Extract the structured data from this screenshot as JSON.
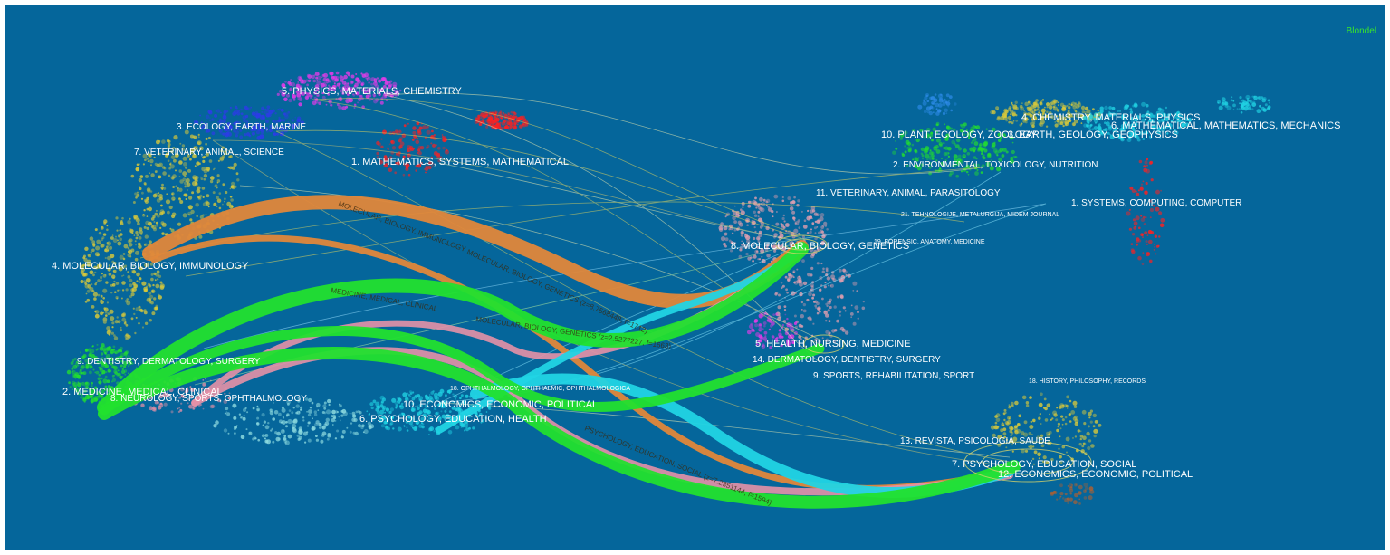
{
  "brand": "Blondel",
  "colors": {
    "background": "#05669b",
    "orange": "#e0873a",
    "green": "#22e02e",
    "pink": "#e691a7",
    "cyan": "#21d4e4",
    "yellow": "#d8c93a",
    "label": "#ffffff"
  },
  "left_clusters": [
    {
      "name": "5. PHYSICS, MATERIALS, CHEMISTRY"
    },
    {
      "name": "3. ECOLOGY, EARTH, MARINE"
    },
    {
      "name": "7. VETERINARY, ANIMAL, SCIENCE"
    },
    {
      "name": "1. MATHEMATICS, SYSTEMS, MATHEMATICAL"
    },
    {
      "name": "4. MOLECULAR, BIOLOGY, IMMUNOLOGY"
    },
    {
      "name": "9. DENTISTRY, DERMATOLOGY, SURGERY"
    },
    {
      "name": "2. MEDICINE, MEDICAL, CLINICAL"
    },
    {
      "name": "8. NEUROLOGY, SPORTS, OPHTHALMOLOGY"
    },
    {
      "name": "10. ECONOMICS, ECONOMIC, POLITICAL"
    },
    {
      "name": "6. PSYCHOLOGY, EDUCATION, HEALTH"
    },
    {
      "name": "18. OPHTHALMOLOGY, OPHTHALMIC, OPHTHALMOLOGICA"
    }
  ],
  "right_clusters": [
    {
      "name": "4. CHEMISTRY, MATERIALS, PHYSICS"
    },
    {
      "name": "6. MATHEMATICAL, MATHEMATICS, MECHANICS"
    },
    {
      "name": "10. PLANT, ECOLOGY, ZOOLOGY"
    },
    {
      "name": "3. EARTH, GEOLOGY, GEOPHYSICS"
    },
    {
      "name": "2. ENVIRONMENTAL, TOXICOLOGY, NUTRITION"
    },
    {
      "name": "11. VETERINARY, ANIMAL, PARASITOLOGY"
    },
    {
      "name": "1. SYSTEMS, COMPUTING, COMPUTER"
    },
    {
      "name": "21. TEHNOLOGIJE, METALURGIJA, MIDEM JOURNAL"
    },
    {
      "name": "8. MOLECULAR, BIOLOGY, GENETICS"
    },
    {
      "name": "19. FORENSIC, ANATOMY, MEDICINE"
    },
    {
      "name": "5. HEALTH, NURSING, MEDICINE"
    },
    {
      "name": "14. DERMATOLOGY, DENTISTRY, SURGERY"
    },
    {
      "name": "9. SPORTS, REHABILITATION, SPORT"
    },
    {
      "name": "18. HISTORY, PHILOSOPHY, RECORDS"
    },
    {
      "name": "13. REVISTA, PSICOLOGIA, SAUDE"
    },
    {
      "name": "7. PSYCHOLOGY, EDUCATION, SOCIAL"
    },
    {
      "name": "12. ECONOMICS, ECONOMIC, POLITICAL"
    }
  ],
  "path_labels": [
    {
      "text": "MOLECULAR, BIOLOGY, IMMUNOLOGY"
    },
    {
      "text": "MOLECULAR, BIOLOGY, GENETICS (z=8.7568448, f=1712)"
    },
    {
      "text": "MEDICINE, MEDICAL, CLINICAL"
    },
    {
      "text": "MOLECULAR, BIOLOGY, GENETICS (z=2.5277227, f=1663)"
    },
    {
      "text": "PSYCHOLOGY, EDUCATION, SOCIAL (z=7.2351144, f=1594)"
    }
  ]
}
